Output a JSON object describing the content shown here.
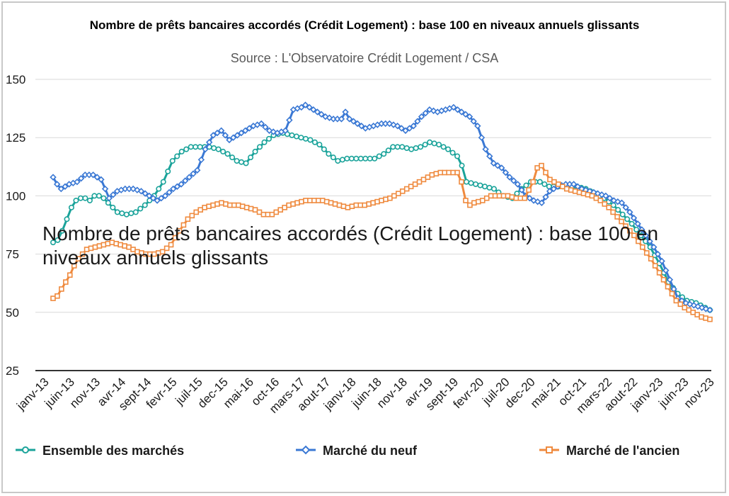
{
  "chart_data": {
    "type": "line",
    "title": "Nombre de prêts bancaires accordés (Crédit Logement) : base 100 en niveaux annuels glissants",
    "subtitle": "Source : L'Observatoire Crédit Logement / CSA",
    "overlay_text": "Nombre de prêts bancaires accordés (Crédit Logement) : base 100 en niveaux annuels glissants",
    "xlabel": "",
    "ylabel": "",
    "ylim": [
      25,
      150
    ],
    "yticks": [
      25,
      50,
      75,
      100,
      125,
      150
    ],
    "grid": true,
    "legend_position": "bottom",
    "x_tick_labels": [
      "janv-13",
      "juin-13",
      "nov-13",
      "avr-14",
      "sept-14",
      "fevr-15",
      "juil-15",
      "dec-15",
      "mai-16",
      "oct-16",
      "mars-17",
      "aout-17",
      "janv-18",
      "juin-18",
      "nov-18",
      "avr-19",
      "sept-19",
      "fevr-20",
      "juil-20",
      "dec-20",
      "mai-21",
      "oct-21",
      "mars-22",
      "aout-22",
      "janv-23",
      "juin-23",
      "nov-23"
    ],
    "series": [
      {
        "name": "Ensemble des marchés",
        "color": "#1aa39a",
        "marker": "circle",
        "keypoints": [
          [
            0,
            80
          ],
          [
            1,
            81
          ],
          [
            2,
            85
          ],
          [
            3,
            90
          ],
          [
            4,
            95
          ],
          [
            5,
            98
          ],
          [
            6,
            99
          ],
          [
            7,
            99
          ],
          [
            8,
            98
          ],
          [
            9,
            100
          ],
          [
            10,
            100
          ],
          [
            11,
            99
          ],
          [
            12,
            97
          ],
          [
            14,
            93
          ],
          [
            16,
            92
          ],
          [
            18,
            93
          ],
          [
            20,
            96
          ],
          [
            22,
            100
          ],
          [
            24,
            106
          ],
          [
            26,
            115
          ],
          [
            28,
            119
          ],
          [
            30,
            121
          ],
          [
            32,
            121
          ],
          [
            34,
            121
          ],
          [
            36,
            120
          ],
          [
            38,
            118
          ],
          [
            40,
            115
          ],
          [
            42,
            114
          ],
          [
            44,
            119
          ],
          [
            46,
            123
          ],
          [
            48,
            126
          ],
          [
            50,
            127
          ],
          [
            52,
            126
          ],
          [
            54,
            125
          ],
          [
            56,
            124
          ],
          [
            58,
            122
          ],
          [
            60,
            118
          ],
          [
            62,
            115
          ],
          [
            64,
            116
          ],
          [
            66,
            116
          ],
          [
            68,
            116
          ],
          [
            70,
            116
          ],
          [
            72,
            118
          ],
          [
            74,
            121
          ],
          [
            76,
            121
          ],
          [
            78,
            120
          ],
          [
            80,
            121
          ],
          [
            82,
            123
          ],
          [
            84,
            122
          ],
          [
            86,
            120
          ],
          [
            88,
            117
          ],
          [
            89,
            113
          ],
          [
            90,
            106
          ],
          [
            92,
            105
          ],
          [
            94,
            104
          ],
          [
            96,
            103
          ],
          [
            98,
            100
          ],
          [
            100,
            99
          ],
          [
            102,
            103
          ],
          [
            104,
            106
          ],
          [
            106,
            106
          ],
          [
            108,
            104
          ],
          [
            110,
            104
          ],
          [
            112,
            104
          ],
          [
            114,
            104
          ],
          [
            116,
            103
          ],
          [
            118,
            101
          ],
          [
            120,
            99
          ],
          [
            122,
            96
          ],
          [
            124,
            92
          ],
          [
            126,
            88
          ],
          [
            128,
            83
          ],
          [
            130,
            78
          ],
          [
            132,
            71
          ],
          [
            134,
            63
          ],
          [
            136,
            58
          ],
          [
            138,
            55
          ],
          [
            140,
            54
          ],
          [
            142,
            52
          ],
          [
            143,
            51
          ]
        ]
      },
      {
        "name": "Marché du neuf",
        "color": "#3a78d4",
        "marker": "diamond",
        "keypoints": [
          [
            0,
            108
          ],
          [
            1,
            105
          ],
          [
            2,
            103
          ],
          [
            4,
            105
          ],
          [
            6,
            106
          ],
          [
            8,
            109
          ],
          [
            10,
            109
          ],
          [
            12,
            107
          ],
          [
            13,
            103
          ],
          [
            14,
            99
          ],
          [
            16,
            102
          ],
          [
            18,
            103
          ],
          [
            20,
            103
          ],
          [
            22,
            102
          ],
          [
            24,
            100
          ],
          [
            26,
            98
          ],
          [
            28,
            100
          ],
          [
            30,
            103
          ],
          [
            32,
            105
          ],
          [
            34,
            108
          ],
          [
            36,
            111
          ],
          [
            38,
            120
          ],
          [
            40,
            126
          ],
          [
            42,
            128
          ],
          [
            44,
            124
          ],
          [
            46,
            126
          ],
          [
            48,
            128
          ],
          [
            50,
            130
          ],
          [
            52,
            131
          ],
          [
            54,
            128
          ],
          [
            56,
            127
          ],
          [
            58,
            128
          ],
          [
            60,
            137
          ],
          [
            62,
            138
          ],
          [
            63,
            139
          ],
          [
            64,
            138
          ],
          [
            66,
            136
          ],
          [
            68,
            134
          ],
          [
            70,
            133
          ],
          [
            72,
            133
          ],
          [
            73,
            136
          ],
          [
            74,
            133
          ],
          [
            76,
            131
          ],
          [
            78,
            129
          ],
          [
            80,
            130
          ],
          [
            82,
            131
          ],
          [
            84,
            131
          ],
          [
            86,
            130
          ],
          [
            88,
            128
          ],
          [
            90,
            130
          ],
          [
            92,
            134
          ],
          [
            94,
            137
          ],
          [
            96,
            136
          ],
          [
            98,
            137
          ],
          [
            100,
            138
          ],
          [
            102,
            136
          ],
          [
            104,
            134
          ],
          [
            106,
            130
          ],
          [
            108,
            120
          ],
          [
            110,
            114
          ],
          [
            112,
            112
          ],
          [
            114,
            108
          ],
          [
            116,
            105
          ],
          [
            118,
            100
          ],
          [
            120,
            98
          ],
          [
            122,
            97
          ],
          [
            124,
            102
          ],
          [
            126,
            104
          ],
          [
            128,
            105
          ],
          [
            130,
            105
          ],
          [
            132,
            103
          ],
          [
            134,
            102
          ],
          [
            136,
            101
          ],
          [
            138,
            100
          ],
          [
            140,
            98
          ],
          [
            142,
            97
          ],
          [
            144,
            93
          ],
          [
            146,
            88
          ],
          [
            148,
            83
          ],
          [
            150,
            78
          ],
          [
            152,
            72
          ],
          [
            154,
            64
          ],
          [
            156,
            56
          ],
          [
            158,
            54
          ],
          [
            160,
            53
          ],
          [
            162,
            52
          ],
          [
            164,
            51
          ]
        ]
      },
      {
        "name": "Marché de l'ancien",
        "color": "#ef8a3e",
        "marker": "square",
        "keypoints": [
          [
            0,
            56
          ],
          [
            1,
            57
          ],
          [
            2,
            60
          ],
          [
            3,
            63
          ],
          [
            4,
            66
          ],
          [
            5,
            70
          ],
          [
            6,
            73
          ],
          [
            8,
            77
          ],
          [
            10,
            78
          ],
          [
            12,
            79
          ],
          [
            14,
            80
          ],
          [
            16,
            79
          ],
          [
            18,
            78
          ],
          [
            20,
            76
          ],
          [
            22,
            75
          ],
          [
            24,
            75
          ],
          [
            26,
            76
          ],
          [
            28,
            79
          ],
          [
            30,
            85
          ],
          [
            32,
            90
          ],
          [
            34,
            93
          ],
          [
            36,
            95
          ],
          [
            38,
            96
          ],
          [
            40,
            97
          ],
          [
            42,
            96
          ],
          [
            44,
            96
          ],
          [
            46,
            95
          ],
          [
            48,
            94
          ],
          [
            50,
            92
          ],
          [
            52,
            92
          ],
          [
            54,
            94
          ],
          [
            56,
            96
          ],
          [
            58,
            97
          ],
          [
            60,
            98
          ],
          [
            62,
            98
          ],
          [
            64,
            98
          ],
          [
            66,
            97
          ],
          [
            68,
            96
          ],
          [
            70,
            95
          ],
          [
            72,
            96
          ],
          [
            74,
            96
          ],
          [
            76,
            97
          ],
          [
            78,
            98
          ],
          [
            80,
            99
          ],
          [
            82,
            101
          ],
          [
            84,
            103
          ],
          [
            86,
            105
          ],
          [
            88,
            107
          ],
          [
            90,
            109
          ],
          [
            92,
            110
          ],
          [
            94,
            110
          ],
          [
            96,
            110
          ],
          [
            97,
            106
          ],
          [
            98,
            98
          ],
          [
            99,
            96
          ],
          [
            100,
            97
          ],
          [
            102,
            98
          ],
          [
            104,
            100
          ],
          [
            106,
            100
          ],
          [
            108,
            100
          ],
          [
            110,
            99
          ],
          [
            112,
            99
          ],
          [
            114,
            106
          ],
          [
            115,
            112
          ],
          [
            116,
            113
          ],
          [
            117,
            110
          ],
          [
            118,
            107
          ],
          [
            120,
            105
          ],
          [
            122,
            103
          ],
          [
            124,
            102
          ],
          [
            126,
            101
          ],
          [
            128,
            100
          ],
          [
            130,
            98
          ],
          [
            132,
            95
          ],
          [
            134,
            91
          ],
          [
            136,
            87
          ],
          [
            138,
            83
          ],
          [
            140,
            78
          ],
          [
            142,
            73
          ],
          [
            144,
            67
          ],
          [
            146,
            61
          ],
          [
            148,
            55
          ],
          [
            150,
            52
          ],
          [
            152,
            50
          ],
          [
            154,
            48
          ],
          [
            156,
            47
          ]
        ]
      }
    ]
  }
}
